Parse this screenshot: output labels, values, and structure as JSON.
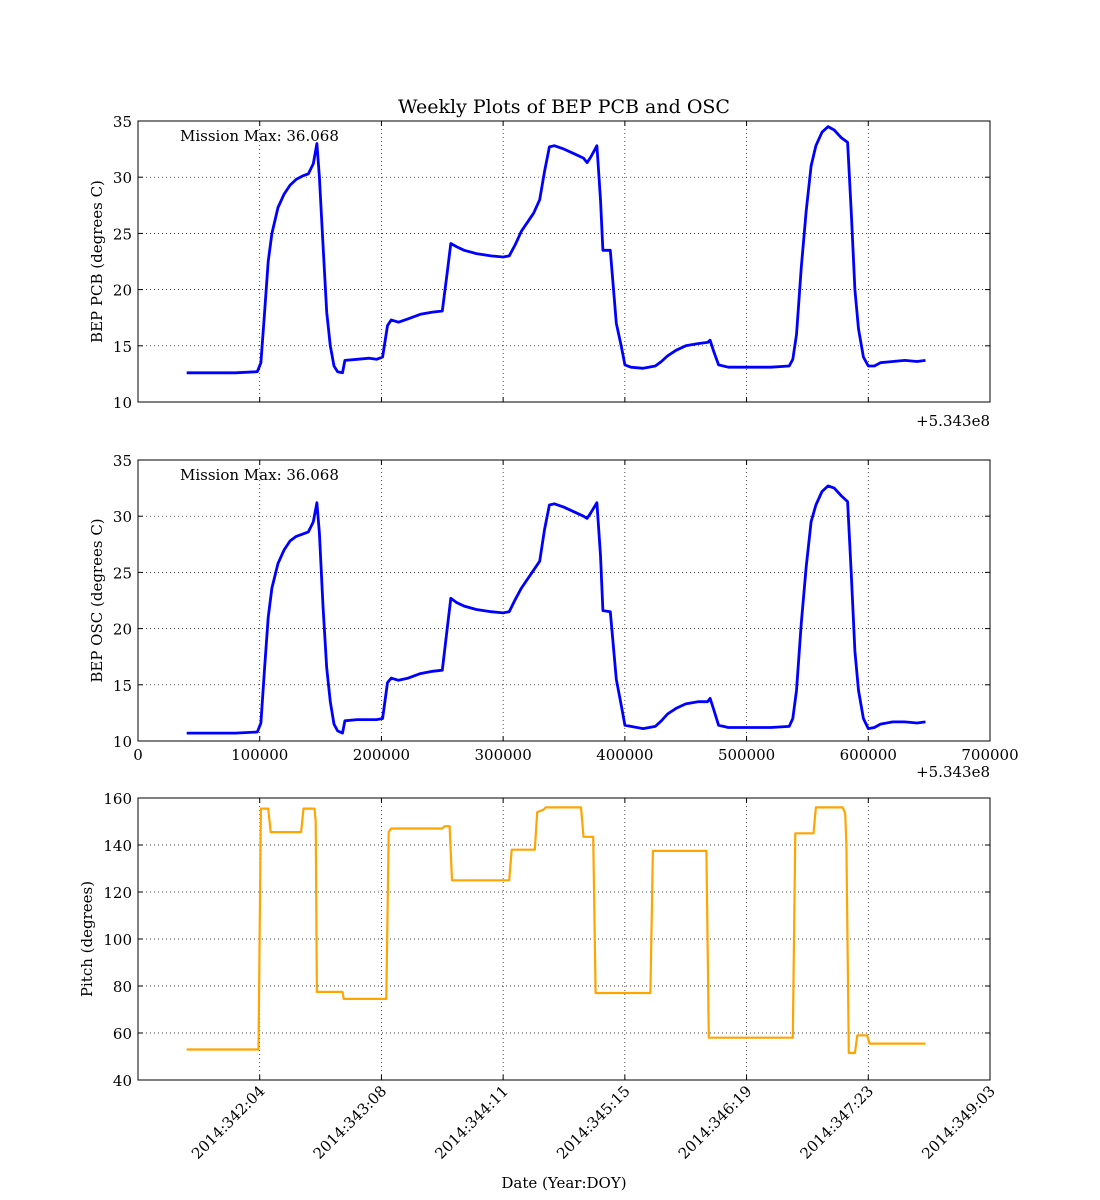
{
  "figure": {
    "title": "Weekly Plots of BEP PCB and OSC"
  },
  "chart_data": [
    {
      "type": "line",
      "ylabel": "BEP PCB (degrees C)",
      "xlim": [
        0,
        700000
      ],
      "ylim": [
        10,
        35
      ],
      "x_offset_label": "+5.343e8",
      "yticks": [
        10,
        15,
        20,
        25,
        30,
        35
      ],
      "xtick_labels": [],
      "annotation": "Mission Max: 36.068",
      "grid": true,
      "series": [
        {
          "color": "#0000ff",
          "points": [
            [
              40000,
              12.6
            ],
            [
              60000,
              12.6
            ],
            [
              80000,
              12.6
            ],
            [
              98000,
              12.7
            ],
            [
              101000,
              13.5
            ],
            [
              104000,
              18
            ],
            [
              107000,
              22.5
            ],
            [
              110000,
              25
            ],
            [
              115000,
              27.3
            ],
            [
              120000,
              28.5
            ],
            [
              125000,
              29.3
            ],
            [
              130000,
              29.8
            ],
            [
              135000,
              30.1
            ],
            [
              140000,
              30.3
            ],
            [
              144000,
              31.2
            ],
            [
              147000,
              33.0
            ],
            [
              149000,
              30
            ],
            [
              152000,
              24
            ],
            [
              155000,
              18
            ],
            [
              158000,
              15
            ],
            [
              161000,
              13.2
            ],
            [
              164000,
              12.7
            ],
            [
              168000,
              12.6
            ],
            [
              170000,
              13.7
            ],
            [
              180000,
              13.8
            ],
            [
              190000,
              13.9
            ],
            [
              196000,
              13.8
            ],
            [
              201000,
              14.0
            ],
            [
              205000,
              16.8
            ],
            [
              208000,
              17.3
            ],
            [
              214000,
              17.1
            ],
            [
              222000,
              17.4
            ],
            [
              232000,
              17.8
            ],
            [
              242000,
              18.0
            ],
            [
              250000,
              18.1
            ],
            [
              254000,
              21.5
            ],
            [
              257000,
              24.1
            ],
            [
              262000,
              23.8
            ],
            [
              268000,
              23.5
            ],
            [
              278000,
              23.2
            ],
            [
              290000,
              23.0
            ],
            [
              300000,
              22.9
            ],
            [
              305000,
              23.0
            ],
            [
              310000,
              24
            ],
            [
              315000,
              25.2
            ],
            [
              320000,
              26
            ],
            [
              325000,
              26.8
            ],
            [
              330000,
              28
            ],
            [
              334000,
              30.5
            ],
            [
              338000,
              32.7
            ],
            [
              342000,
              32.8
            ],
            [
              350000,
              32.5
            ],
            [
              360000,
              32.0
            ],
            [
              366000,
              31.7
            ],
            [
              369000,
              31.3
            ],
            [
              372000,
              31.8
            ],
            [
              377000,
              32.8
            ],
            [
              380000,
              28
            ],
            [
              382000,
              23.5
            ],
            [
              388000,
              23.5
            ],
            [
              393000,
              17
            ],
            [
              397000,
              15
            ],
            [
              400000,
              13.3
            ],
            [
              405000,
              13.1
            ],
            [
              415000,
              13.0
            ],
            [
              425000,
              13.2
            ],
            [
              430000,
              13.6
            ],
            [
              435000,
              14.1
            ],
            [
              442000,
              14.6
            ],
            [
              450000,
              15.0
            ],
            [
              460000,
              15.2
            ],
            [
              468000,
              15.3
            ],
            [
              470000,
              15.5
            ],
            [
              473000,
              14.5
            ],
            [
              477000,
              13.3
            ],
            [
              485000,
              13.1
            ],
            [
              500000,
              13.1
            ],
            [
              520000,
              13.1
            ],
            [
              535000,
              13.2
            ],
            [
              538000,
              13.8
            ],
            [
              541000,
              16
            ],
            [
              545000,
              22
            ],
            [
              549000,
              27
            ],
            [
              553000,
              31
            ],
            [
              557000,
              32.8
            ],
            [
              562000,
              34.0
            ],
            [
              567000,
              34.5
            ],
            [
              572000,
              34.2
            ],
            [
              578000,
              33.5
            ],
            [
              583000,
              33.1
            ],
            [
              586000,
              27
            ],
            [
              589000,
              20
            ],
            [
              592000,
              16.5
            ],
            [
              596000,
              14
            ],
            [
              600000,
              13.2
            ],
            [
              605000,
              13.2
            ],
            [
              610000,
              13.5
            ],
            [
              620000,
              13.6
            ],
            [
              630000,
              13.7
            ],
            [
              640000,
              13.6
            ],
            [
              647000,
              13.7
            ]
          ]
        }
      ]
    },
    {
      "type": "line",
      "ylabel": "BEP OSC (degrees C)",
      "xlim": [
        0,
        700000
      ],
      "ylim": [
        10,
        35
      ],
      "x_offset_label": "+5.343e8",
      "yticks": [
        10,
        15,
        20,
        25,
        30,
        35
      ],
      "xtick_labels": [
        "0",
        "100000",
        "200000",
        "300000",
        "400000",
        "500000",
        "600000",
        "700000"
      ],
      "annotation": "Mission Max: 36.068",
      "grid": true,
      "series": [
        {
          "color": "#0000ff",
          "points": [
            [
              40000,
              10.7
            ],
            [
              60000,
              10.7
            ],
            [
              80000,
              10.7
            ],
            [
              98000,
              10.8
            ],
            [
              101000,
              11.6
            ],
            [
              104000,
              16.5
            ],
            [
              107000,
              21
            ],
            [
              110000,
              23.6
            ],
            [
              115000,
              25.8
            ],
            [
              120000,
              27
            ],
            [
              125000,
              27.8
            ],
            [
              130000,
              28.2
            ],
            [
              135000,
              28.4
            ],
            [
              140000,
              28.6
            ],
            [
              144000,
              29.5
            ],
            [
              147000,
              31.2
            ],
            [
              149000,
              28.5
            ],
            [
              152000,
              22
            ],
            [
              155000,
              16.5
            ],
            [
              158000,
              13.5
            ],
            [
              161000,
              11.5
            ],
            [
              164000,
              10.9
            ],
            [
              168000,
              10.7
            ],
            [
              170000,
              11.8
            ],
            [
              180000,
              11.9
            ],
            [
              190000,
              11.9
            ],
            [
              196000,
              11.9
            ],
            [
              201000,
              12.0
            ],
            [
              205000,
              15.2
            ],
            [
              208000,
              15.6
            ],
            [
              214000,
              15.4
            ],
            [
              222000,
              15.6
            ],
            [
              232000,
              16.0
            ],
            [
              242000,
              16.2
            ],
            [
              250000,
              16.3
            ],
            [
              254000,
              20
            ],
            [
              257000,
              22.7
            ],
            [
              262000,
              22.3
            ],
            [
              268000,
              22.0
            ],
            [
              278000,
              21.7
            ],
            [
              290000,
              21.5
            ],
            [
              300000,
              21.4
            ],
            [
              305000,
              21.5
            ],
            [
              310000,
              22.6
            ],
            [
              315000,
              23.6
            ],
            [
              320000,
              24.4
            ],
            [
              325000,
              25.2
            ],
            [
              330000,
              26
            ],
            [
              334000,
              28.8
            ],
            [
              338000,
              31.0
            ],
            [
              342000,
              31.1
            ],
            [
              350000,
              30.8
            ],
            [
              360000,
              30.3
            ],
            [
              366000,
              30.0
            ],
            [
              369000,
              29.8
            ],
            [
              372000,
              30.3
            ],
            [
              377000,
              31.2
            ],
            [
              380000,
              26.5
            ],
            [
              382000,
              21.6
            ],
            [
              388000,
              21.5
            ],
            [
              393000,
              15.5
            ],
            [
              397000,
              13.2
            ],
            [
              400000,
              11.4
            ],
            [
              405000,
              11.3
            ],
            [
              415000,
              11.1
            ],
            [
              425000,
              11.3
            ],
            [
              430000,
              11.8
            ],
            [
              435000,
              12.4
            ],
            [
              442000,
              12.9
            ],
            [
              450000,
              13.3
            ],
            [
              460000,
              13.5
            ],
            [
              468000,
              13.5
            ],
            [
              470000,
              13.8
            ],
            [
              473000,
              12.8
            ],
            [
              477000,
              11.4
            ],
            [
              485000,
              11.2
            ],
            [
              500000,
              11.2
            ],
            [
              520000,
              11.2
            ],
            [
              535000,
              11.3
            ],
            [
              538000,
              12
            ],
            [
              541000,
              14.5
            ],
            [
              545000,
              20.5
            ],
            [
              549000,
              25.5
            ],
            [
              553000,
              29.5
            ],
            [
              557000,
              31
            ],
            [
              562000,
              32.2
            ],
            [
              567000,
              32.7
            ],
            [
              572000,
              32.5
            ],
            [
              578000,
              31.8
            ],
            [
              583000,
              31.3
            ],
            [
              586000,
              25
            ],
            [
              589000,
              18
            ],
            [
              592000,
              14.5
            ],
            [
              596000,
              12
            ],
            [
              600000,
              11.1
            ],
            [
              605000,
              11.2
            ],
            [
              610000,
              11.5
            ],
            [
              620000,
              11.7
            ],
            [
              630000,
              11.7
            ],
            [
              640000,
              11.6
            ],
            [
              647000,
              11.7
            ]
          ]
        }
      ]
    },
    {
      "type": "line",
      "xlabel": "Date (Year:DOY)",
      "ylabel": "Pitch (degrees)",
      "xlim": [
        0,
        700000
      ],
      "ylim": [
        40,
        160
      ],
      "yticks": [
        40,
        60,
        80,
        100,
        120,
        140,
        160
      ],
      "xticks": [
        100000,
        200000,
        300000,
        400000,
        500000,
        600000,
        700000
      ],
      "xtick_labels": [
        "2014:342:04",
        "2014:343:08",
        "2014:344:11",
        "2014:345:15",
        "2014:346:19",
        "2014:347:23",
        "2014:349:03"
      ],
      "grid": true,
      "series": [
        {
          "color": "#ffa500",
          "points": [
            [
              40000,
              53
            ],
            [
              99000,
              53
            ],
            [
              101000,
              155.5
            ],
            [
              107000,
              155.5
            ],
            [
              109000,
              145.5
            ],
            [
              134000,
              145.5
            ],
            [
              136000,
              155.5
            ],
            [
              145000,
              155.5
            ],
            [
              146000,
              150
            ],
            [
              147000,
              77.5
            ],
            [
              168000,
              77.5
            ],
            [
              169000,
              74.5
            ],
            [
              204000,
              74.5
            ],
            [
              206000,
              145.5
            ],
            [
              208000,
              147
            ],
            [
              250000,
              147
            ],
            [
              252000,
              148
            ],
            [
              256000,
              148
            ],
            [
              258000,
              125
            ],
            [
              305000,
              125
            ],
            [
              307000,
              138
            ],
            [
              326000,
              138
            ],
            [
              328000,
              154
            ],
            [
              333000,
              155
            ],
            [
              335000,
              156
            ],
            [
              364000,
              156
            ],
            [
              366000,
              143.5
            ],
            [
              374000,
              143.5
            ],
            [
              376000,
              77
            ],
            [
              421000,
              77
            ],
            [
              423000,
              137.5
            ],
            [
              467000,
              137.5
            ],
            [
              469000,
              58
            ],
            [
              538000,
              58
            ],
            [
              540000,
              145
            ],
            [
              555000,
              145
            ],
            [
              557000,
              156
            ],
            [
              579000,
              156
            ],
            [
              581000,
              153.5
            ],
            [
              582000,
              140
            ],
            [
              584000,
              51.5
            ],
            [
              589000,
              51.5
            ],
            [
              591000,
              59
            ],
            [
              599000,
              59
            ],
            [
              601000,
              55.5
            ],
            [
              647000,
              55.5
            ]
          ]
        }
      ]
    }
  ]
}
